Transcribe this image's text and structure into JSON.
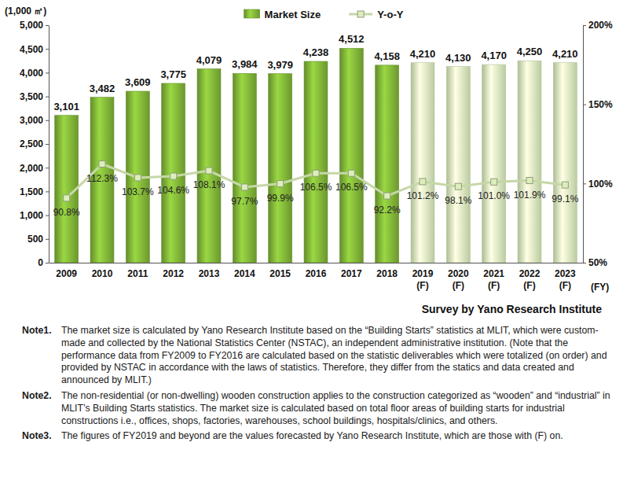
{
  "chart_data": {
    "type": "bar",
    "y_label": "(1,000 ㎡)",
    "x_label": "(FY)",
    "source": "Survey by Yano Research Institute",
    "categories": [
      "2009",
      "2010",
      "2011",
      "2012",
      "2013",
      "2014",
      "2015",
      "2016",
      "2017",
      "2018",
      "2019\n(F)",
      "2020\n(F)",
      "2021\n(F)",
      "2022\n(F)",
      "2023\n(F)"
    ],
    "series": [
      {
        "name": "Market Size",
        "type": "bar",
        "color": "#78a834",
        "colors": [
          "#78a834",
          "#78a834",
          "#78a834",
          "#78a834",
          "#78a834",
          "#78a834",
          "#78a834",
          "#78a834",
          "#78a834",
          "#78a834",
          "#cfe2b2",
          "#cfe2b2",
          "#cfe2b2",
          "#cfe2b2",
          "#cfe2b2"
        ],
        "values": [
          3101,
          3482,
          3609,
          3775,
          4079,
          3984,
          3979,
          4238,
          4512,
          4158,
          4210,
          4130,
          4170,
          4250,
          4210
        ],
        "value_labels": [
          "3,101",
          "3,482",
          "3,609",
          "3,775",
          "4,079",
          "3,984",
          "3,979",
          "4,238",
          "4,512",
          "4,158",
          "4,210",
          "4,130",
          "4,170",
          "4,250",
          "4,210"
        ]
      },
      {
        "name": "Y-o-Y",
        "type": "line",
        "axis": "y2",
        "color": "#c6d7a8",
        "marker": "square",
        "values": [
          90.8,
          112.3,
          103.7,
          104.6,
          108.1,
          97.7,
          99.9,
          106.5,
          106.5,
          92.2,
          101.2,
          98.1,
          101.0,
          101.9,
          99.1
        ],
        "value_labels": [
          "90.8%",
          "112.3%",
          "103.7%",
          "104.6%",
          "108.1%",
          "97.7%",
          "99.9%",
          "106.5%",
          "106.5%",
          "92.2%",
          "101.2%",
          "98.1%",
          "101.0%",
          "101.9%",
          "99.1%"
        ]
      }
    ],
    "ylim": [
      0,
      5000
    ],
    "yticks": [
      0,
      500,
      {
        "value": 1000,
        "label": "1,000"
      },
      {
        "value": 1500,
        "label": "1,500"
      },
      {
        "value": 2000,
        "label": "2,000"
      },
      {
        "value": 2500,
        "label": "2,500"
      },
      {
        "value": 3000,
        "label": "3,000"
      },
      {
        "value": 3500,
        "label": "3,500"
      },
      {
        "value": 4000,
        "label": "4,000"
      },
      {
        "value": 4500,
        "label": "4,500"
      },
      {
        "value": 5000,
        "label": "5,000"
      }
    ],
    "y2lim": [
      50,
      200
    ],
    "y2ticks": [
      {
        "value": 50,
        "label": "50%"
      },
      {
        "value": 100,
        "label": "100%"
      },
      {
        "value": 150,
        "label": "150%"
      },
      {
        "value": 200,
        "label": "200%"
      }
    ],
    "grid": false,
    "legend": "top",
    "data_labels": true,
    "notes": [
      {
        "label": "Note1.",
        "text": "The market size is calculated by Yano Research Institute based on the “Building Starts” statistics at MLIT, which were custom-made and collected by the National Statistics Center (NSTAC), an independent administrative institution. (Note that the performance data from FY2009 to FY2016 are calculated based on the statistic deliverables which were totalized (on order) and provided by NSTAC in accordance with the laws of statistics. Therefore, they differ from the statics and data created and announced by MLIT.)"
      },
      {
        "label": "Note2.",
        "text": "The non-residential (or non-dwelling) wooden construction applies to the construction categorized as “wooden” and “industrial” in MLIT’s Building Starts statistics.  The market size is calculated based on total floor areas of building starts for industrial constructions i.e., offices, shops, factories, warehouses, school buildings, hospitals/clinics, and others."
      },
      {
        "label": "Note3.",
        "text": "The figures of FY2019 and beyond are the values forecasted by Yano Research Institute, which are those with (F) on."
      }
    ]
  }
}
